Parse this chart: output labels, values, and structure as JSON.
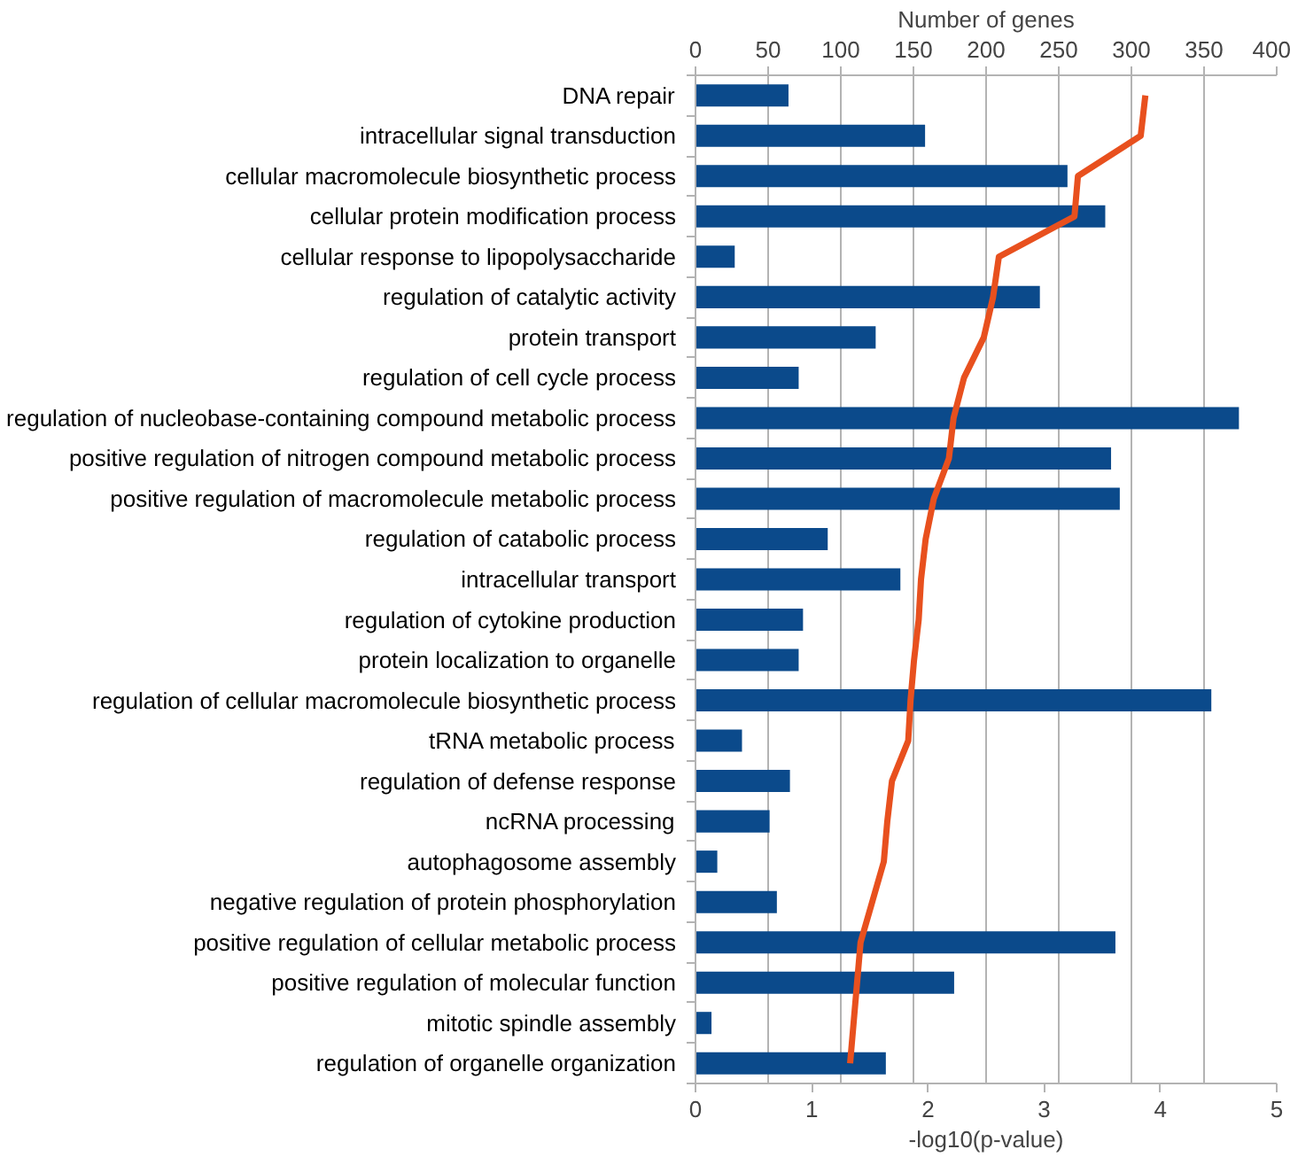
{
  "chart_data": {
    "type": "bar",
    "orientation": "horizontal",
    "xlabel": "-log10(p-value)",
    "x2label": "Number of genes",
    "categories": [
      "DNA repair",
      "intracellular signal transduction",
      "cellular macromolecule biosynthetic process",
      "cellular protein modification process",
      "cellular response to lipopolysaccharide",
      "regulation of catalytic activity",
      "protein transport",
      "regulation of cell cycle process",
      "regulation of nucleobase-containing compound metabolic process",
      "positive regulation of nitrogen compound metabolic process",
      "positive regulation of macromolecule metabolic process",
      "regulation of catabolic process",
      "intracellular transport",
      "regulation of cytokine production",
      "protein localization to organelle",
      "regulation of cellular macromolecule biosynthetic process",
      "tRNA metabolic process",
      "regulation of defense response",
      "ncRNA processing",
      "autophagosome assembly",
      "negative regulation of protein phosphorylation",
      "positive regulation of cellular metabolic process",
      "positive regulation of molecular function",
      "mitotic spindle assembly",
      "regulation of organelle organization"
    ],
    "series": [
      {
        "axis": "x2",
        "color": "#0b4a8b",
        "values": [
          64,
          158,
          256,
          282,
          27,
          237,
          124,
          71,
          374,
          286,
          292,
          91,
          141,
          74,
          71,
          355,
          32,
          65,
          51,
          15,
          56,
          289,
          178,
          11,
          131
        ]
      },
      {
        "type": "line",
        "color": "#e8501e",
        "values": [
          3.87,
          3.83,
          3.29,
          3.26,
          2.61,
          2.56,
          2.48,
          2.31,
          2.22,
          2.18,
          2.05,
          1.98,
          1.94,
          1.92,
          1.88,
          1.85,
          1.83,
          1.69,
          1.65,
          1.62,
          1.52,
          1.42,
          1.39,
          1.36,
          1.33
        ]
      }
    ],
    "xlim": [
      0,
      5
    ],
    "xticks": [
      0,
      1,
      2,
      3,
      4,
      5
    ],
    "x2lim": [
      0,
      400
    ],
    "x2ticks": [
      0,
      50,
      100,
      150,
      200,
      250,
      300,
      350,
      400
    ],
    "grid": "x2"
  }
}
